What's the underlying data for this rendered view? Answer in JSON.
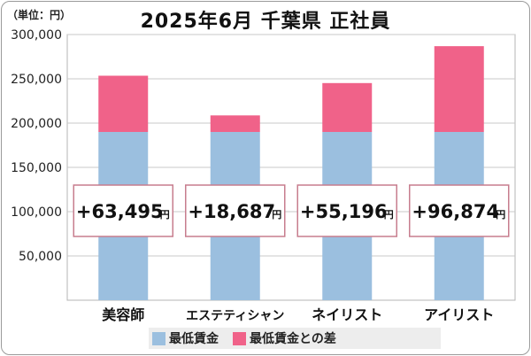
{
  "unit_label": "（単位：円）",
  "chart_data": {
    "type": "bar",
    "title": "2025年6月 千葉県 正社員",
    "categories": [
      "美容師",
      "エステティシャン",
      "ネイリスト",
      "アイリスト"
    ],
    "series": [
      {
        "name": "最低賃金",
        "color": "#9bbfdf",
        "values": [
          190000,
          190000,
          190000,
          190000
        ]
      },
      {
        "name": "最低賃金との差",
        "color": "#f06289",
        "values": [
          63495,
          18687,
          55196,
          96874
        ]
      }
    ],
    "difference_labels": [
      "+63,495",
      "+18,687",
      "+55,196",
      "+96,874"
    ],
    "difference_unit": "円",
    "ylim": [
      0,
      300000
    ],
    "yticks": [
      50000,
      100000,
      150000,
      200000,
      250000,
      300000
    ],
    "ytick_labels": [
      "50,000",
      "100,000",
      "150,000",
      "200,000",
      "250,000",
      "300,000"
    ],
    "grid": true,
    "legend_position": "bottom"
  }
}
